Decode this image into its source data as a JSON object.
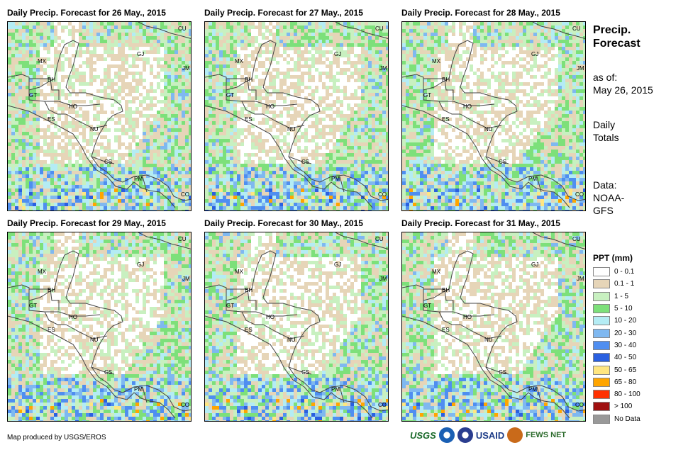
{
  "panels": [
    {
      "title": "Daily Precip. Forecast for 26 May., 2015"
    },
    {
      "title": "Daily Precip. Forecast for 27 May., 2015"
    },
    {
      "title": "Daily Precip. Forecast for 28 May., 2015"
    },
    {
      "title": "Daily Precip. Forecast for 29 May., 2015"
    },
    {
      "title": "Daily Precip. Forecast for 30 May., 2015"
    },
    {
      "title": "Daily Precip. Forecast for 31 May., 2015"
    }
  ],
  "country_labels": [
    "CU",
    "MX",
    "GJ",
    "JM",
    "BH",
    "GT",
    "HO",
    "ES",
    "NU",
    "CS",
    "PM",
    "CO"
  ],
  "side": {
    "title_line1": "Precip.",
    "title_line2": "Forecast",
    "asof_label": "as of:",
    "asof_date": "May 26, 2015",
    "daily_line1": "Daily",
    "daily_line2": "Totals",
    "data_line1": "Data:",
    "data_line2": "NOAA-",
    "data_line3": "GFS"
  },
  "legend": {
    "title": "PPT (mm)",
    "items": [
      {
        "label": "0 - 0.1",
        "color": "#ffffff"
      },
      {
        "label": "0.1 - 1",
        "color": "#e6d5b8"
      },
      {
        "label": "1 - 5",
        "color": "#c8f0c0"
      },
      {
        "label": "5 - 10",
        "color": "#7de07a"
      },
      {
        "label": "10 - 20",
        "color": "#b4ecf4"
      },
      {
        "label": "20 - 30",
        "color": "#7fb8f0"
      },
      {
        "label": "30 - 40",
        "color": "#4f8ef0"
      },
      {
        "label": "40 - 50",
        "color": "#2a60e0"
      },
      {
        "label": "50 - 65",
        "color": "#ffe680"
      },
      {
        "label": "65 - 80",
        "color": "#ffa500"
      },
      {
        "label": "80 - 100",
        "color": "#ff3000"
      },
      {
        "label": "> 100",
        "color": "#a01010"
      },
      {
        "label": "No Data",
        "color": "#999999"
      }
    ]
  },
  "credit": "Map produced by USGS/EROS",
  "logos": {
    "usgs": "USGS",
    "usaid": "USAID",
    "fewsnet": "FEWS NET"
  }
}
